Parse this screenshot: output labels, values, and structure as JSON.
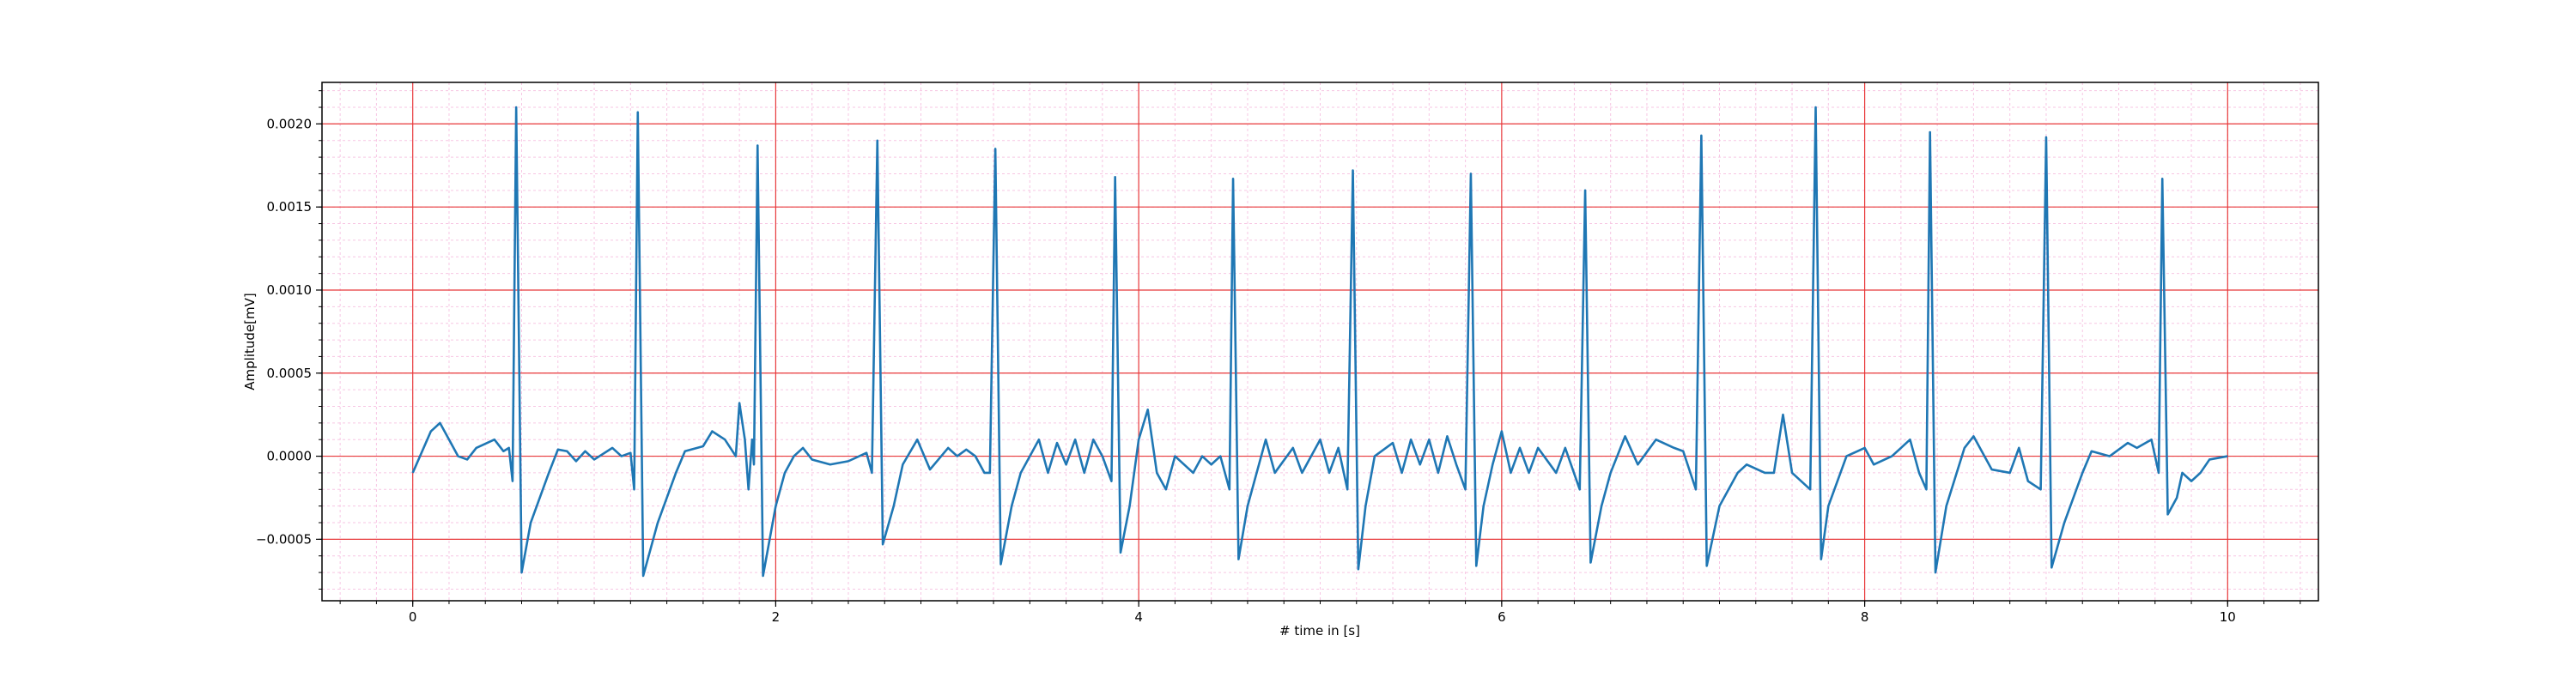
{
  "chart_data": {
    "type": "line",
    "xlabel": "# time in [s]",
    "ylabel": "Amplitude[mV]",
    "xlim": [
      -0.5,
      10.5
    ],
    "ylim": [
      -0.00087,
      0.00225
    ],
    "xticks": [
      0,
      2,
      4,
      6,
      8,
      10
    ],
    "yticks": [
      {
        "value": -0.0005,
        "label": "−0.0005"
      },
      {
        "value": 0,
        "label": "0.0000"
      },
      {
        "value": 0.0005,
        "label": "0.0005"
      },
      {
        "value": 0.001,
        "label": "0.0010"
      },
      {
        "value": 0.0015,
        "label": "0.0015"
      },
      {
        "value": 0.002,
        "label": "0.0020"
      }
    ],
    "grid": true,
    "minor_grid": true,
    "grid_color": "#e8393a",
    "minor_grid_color": "#f7c6e3",
    "series": [
      {
        "color": "#1f77b4",
        "x": [
          0,
          0.1,
          0.15,
          0.25,
          0.3,
          0.35,
          0.45,
          0.5,
          0.53,
          0.55,
          0.57,
          0.6,
          0.65,
          0.75,
          0.8,
          0.85,
          0.9,
          0.95,
          1.0,
          1.1,
          1.15,
          1.2,
          1.22,
          1.24,
          1.27,
          1.35,
          1.45,
          1.5,
          1.6,
          1.65,
          1.72,
          1.78,
          1.8,
          1.83,
          1.85,
          1.87,
          1.88,
          1.9,
          1.93,
          2.0,
          2.05,
          2.1,
          2.15,
          2.2,
          2.3,
          2.4,
          2.5,
          2.53,
          2.56,
          2.59,
          2.65,
          2.7,
          2.78,
          2.85,
          2.95,
          3.0,
          3.05,
          3.1,
          3.15,
          3.18,
          3.21,
          3.24,
          3.3,
          3.35,
          3.45,
          3.5,
          3.55,
          3.6,
          3.65,
          3.7,
          3.75,
          3.8,
          3.85,
          3.87,
          3.9,
          3.95,
          4.0,
          4.05,
          4.1,
          4.15,
          4.2,
          4.3,
          4.35,
          4.4,
          4.45,
          4.5,
          4.52,
          4.55,
          4.6,
          4.7,
          4.75,
          4.85,
          4.9,
          5.0,
          5.05,
          5.1,
          5.15,
          5.18,
          5.21,
          5.25,
          5.3,
          5.4,
          5.45,
          5.5,
          5.55,
          5.6,
          5.65,
          5.7,
          5.75,
          5.8,
          5.83,
          5.86,
          5.9,
          5.95,
          6.0,
          6.05,
          6.1,
          6.15,
          6.2,
          6.3,
          6.35,
          6.43,
          6.46,
          6.49,
          6.55,
          6.6,
          6.68,
          6.75,
          6.85,
          6.95,
          7.0,
          7.07,
          7.1,
          7.13,
          7.2,
          7.3,
          7.35,
          7.45,
          7.5,
          7.55,
          7.6,
          7.7,
          7.73,
          7.76,
          7.8,
          7.9,
          8.0,
          8.05,
          8.15,
          8.2,
          8.25,
          8.3,
          8.34,
          8.36,
          8.39,
          8.45,
          8.55,
          8.6,
          8.7,
          8.8,
          8.85,
          8.9,
          8.97,
          9.0,
          9.03,
          9.1,
          9.2,
          9.25,
          9.35,
          9.45,
          9.5,
          9.58,
          9.62,
          9.64,
          9.67,
          9.72,
          9.75,
          9.8,
          9.85,
          9.9,
          10.0
        ],
        "values": [
          -0.0001,
          0.00015,
          0.0002,
          0,
          -2e-05,
          5e-05,
          0.0001,
          3e-05,
          5e-05,
          -0.00015,
          0.0021,
          -0.0007,
          -0.0004,
          -0.0001,
          4e-05,
          3e-05,
          -3e-05,
          3e-05,
          -2e-05,
          5e-05,
          0,
          2e-05,
          -0.0002,
          0.00207,
          -0.00072,
          -0.0004,
          -0.0001,
          3e-05,
          6e-05,
          0.00015,
          0.0001,
          0,
          0.00032,
          0.0001,
          -0.0002,
          0.0001,
          -5e-05,
          0.00187,
          -0.00072,
          -0.0003,
          -0.0001,
          0,
          5e-05,
          -2e-05,
          -5e-05,
          -3e-05,
          2e-05,
          -0.0001,
          0.0019,
          -0.00053,
          -0.0003,
          -5e-05,
          0.0001,
          -8e-05,
          5e-05,
          0,
          4e-05,
          0,
          -0.0001,
          -0.0001,
          0.00185,
          -0.00065,
          -0.0003,
          -0.0001,
          0.0001,
          -0.0001,
          8e-05,
          -5e-05,
          0.0001,
          -0.0001,
          0.0001,
          0,
          -0.00015,
          0.00168,
          -0.00058,
          -0.0003,
          0.0001,
          0.00028,
          -0.0001,
          -0.0002,
          0,
          -0.0001,
          0,
          -5e-05,
          0,
          -0.0002,
          0.00167,
          -0.00062,
          -0.0003,
          0.0001,
          -0.0001,
          5e-05,
          -0.0001,
          0.0001,
          -0.0001,
          5e-05,
          -0.0002,
          0.00172,
          -0.00068,
          -0.0003,
          0,
          8e-05,
          -0.0001,
          0.0001,
          -5e-05,
          0.0001,
          -0.0001,
          0.00012,
          -5e-05,
          -0.0002,
          0.0017,
          -0.00066,
          -0.0003,
          -5e-05,
          0.00015,
          -0.0001,
          5e-05,
          -0.0001,
          5e-05,
          -0.0001,
          5e-05,
          -0.0002,
          0.0016,
          -0.00064,
          -0.0003,
          -0.0001,
          0.00012,
          -5e-05,
          0.0001,
          5e-05,
          3e-05,
          -0.0002,
          0.00193,
          -0.00066,
          -0.0003,
          -0.0001,
          -5e-05,
          -0.0001,
          -0.0001,
          0.00025,
          -0.0001,
          -0.0002,
          0.0021,
          -0.00062,
          -0.0003,
          0,
          5e-05,
          -5e-05,
          0,
          5e-05,
          0.0001,
          -0.0001,
          -0.0002,
          0.00195,
          -0.0007,
          -0.0003,
          5e-05,
          0.00012,
          -8e-05,
          -0.0001,
          5e-05,
          -0.00015,
          -0.0002,
          0.00192,
          -0.00067,
          -0.0004,
          -0.0001,
          3e-05,
          0,
          8e-05,
          5e-05,
          0.0001,
          -0.0001,
          0.00167,
          -0.00035,
          -0.00025,
          -0.0001,
          -0.00015,
          -0.0001,
          -2e-05,
          0
        ]
      }
    ]
  }
}
